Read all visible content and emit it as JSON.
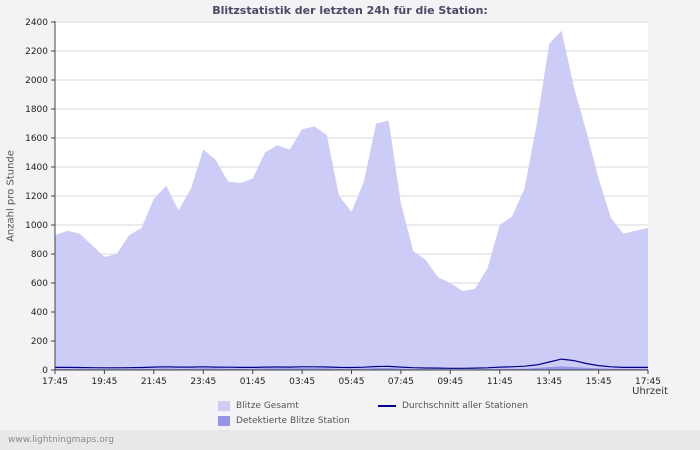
{
  "title": "Blitzstatistik der letzten 24h für die Station:",
  "y_axis_label": "Anzahl pro Stunde",
  "x_axis_label": "Uhrzeit",
  "footer": "www.lightningmaps.org",
  "colors": {
    "area_total": "#ccccf6",
    "area_detected": "#9494e8",
    "avg_line": "#00008b",
    "grid": "#d9d9d9",
    "axis": "#444444",
    "tick_text": "#222222",
    "plot_bg": "#ffffff"
  },
  "legend": [
    {
      "label": "Blitze Gesamt",
      "type": "area",
      "color": "#ccccf6"
    },
    {
      "label": "Detektierte Blitze Station",
      "type": "area",
      "color": "#9494e8"
    },
    {
      "label": "Durchschnitt aller Stationen",
      "type": "line",
      "color": "#00008b"
    }
  ],
  "chart_data": {
    "type": "area",
    "title": "Blitzstatistik der letzten 24h für die Station:",
    "xlabel": "Uhrzeit",
    "ylabel": "Anzahl pro Stunde",
    "ylim": [
      0,
      2400
    ],
    "grid": "horizontal",
    "legend_position": "bottom",
    "y_ticks": [
      0,
      200,
      400,
      600,
      800,
      1000,
      1200,
      1400,
      1600,
      1800,
      2000,
      2200,
      2400
    ],
    "x_ticks": [
      "17:45",
      "19:45",
      "21:45",
      "23:45",
      "01:45",
      "03:45",
      "05:45",
      "07:45",
      "09:45",
      "11:45",
      "13:45",
      "15:45",
      "17:45"
    ],
    "x": [
      "17:45",
      "18:15",
      "18:45",
      "19:15",
      "19:45",
      "20:15",
      "20:45",
      "21:15",
      "21:45",
      "22:15",
      "22:45",
      "23:15",
      "23:45",
      "00:15",
      "00:45",
      "01:15",
      "01:45",
      "02:15",
      "02:45",
      "03:15",
      "03:45",
      "04:15",
      "04:45",
      "05:15",
      "05:45",
      "06:15",
      "06:45",
      "07:15",
      "07:45",
      "08:15",
      "08:45",
      "09:15",
      "09:45",
      "10:15",
      "10:45",
      "11:15",
      "11:45",
      "12:15",
      "12:45",
      "13:15",
      "13:45",
      "14:15",
      "14:45",
      "15:15",
      "15:45",
      "16:15",
      "16:45",
      "17:15",
      "17:45"
    ],
    "series": [
      {
        "name": "Blitze Gesamt",
        "values": [
          930,
          960,
          940,
          860,
          780,
          800,
          930,
          980,
          1180,
          1270,
          1100,
          1250,
          1520,
          1450,
          1300,
          1290,
          1320,
          1500,
          1550,
          1520,
          1660,
          1680,
          1620,
          1200,
          1090,
          1300,
          1700,
          1720,
          1150,
          820,
          760,
          640,
          600,
          545,
          560,
          700,
          1000,
          1060,
          1250,
          1700,
          2250,
          2340,
          1950,
          1650,
          1320,
          1050,
          940,
          960,
          980
        ]
      },
      {
        "name": "Detektierte Blitze Station",
        "values": [
          8,
          8,
          8,
          7,
          6,
          6,
          7,
          8,
          10,
          11,
          9,
          10,
          12,
          11,
          10,
          10,
          10,
          12,
          12,
          12,
          13,
          13,
          12,
          9,
          9,
          10,
          14,
          14,
          10,
          7,
          6,
          5,
          5,
          4,
          5,
          6,
          8,
          9,
          10,
          14,
          20,
          25,
          20,
          15,
          11,
          8,
          8,
          8,
          8
        ]
      },
      {
        "name": "Durchschnitt aller Stationen",
        "values": [
          18,
          18,
          17,
          16,
          15,
          15,
          16,
          17,
          20,
          22,
          20,
          20,
          22,
          20,
          19,
          18,
          18,
          20,
          21,
          20,
          22,
          22,
          21,
          18,
          17,
          19,
          24,
          25,
          20,
          16,
          14,
          13,
          12,
          12,
          13,
          15,
          20,
          22,
          26,
          35,
          55,
          75,
          65,
          45,
          30,
          22,
          18,
          18,
          18
        ]
      }
    ]
  }
}
